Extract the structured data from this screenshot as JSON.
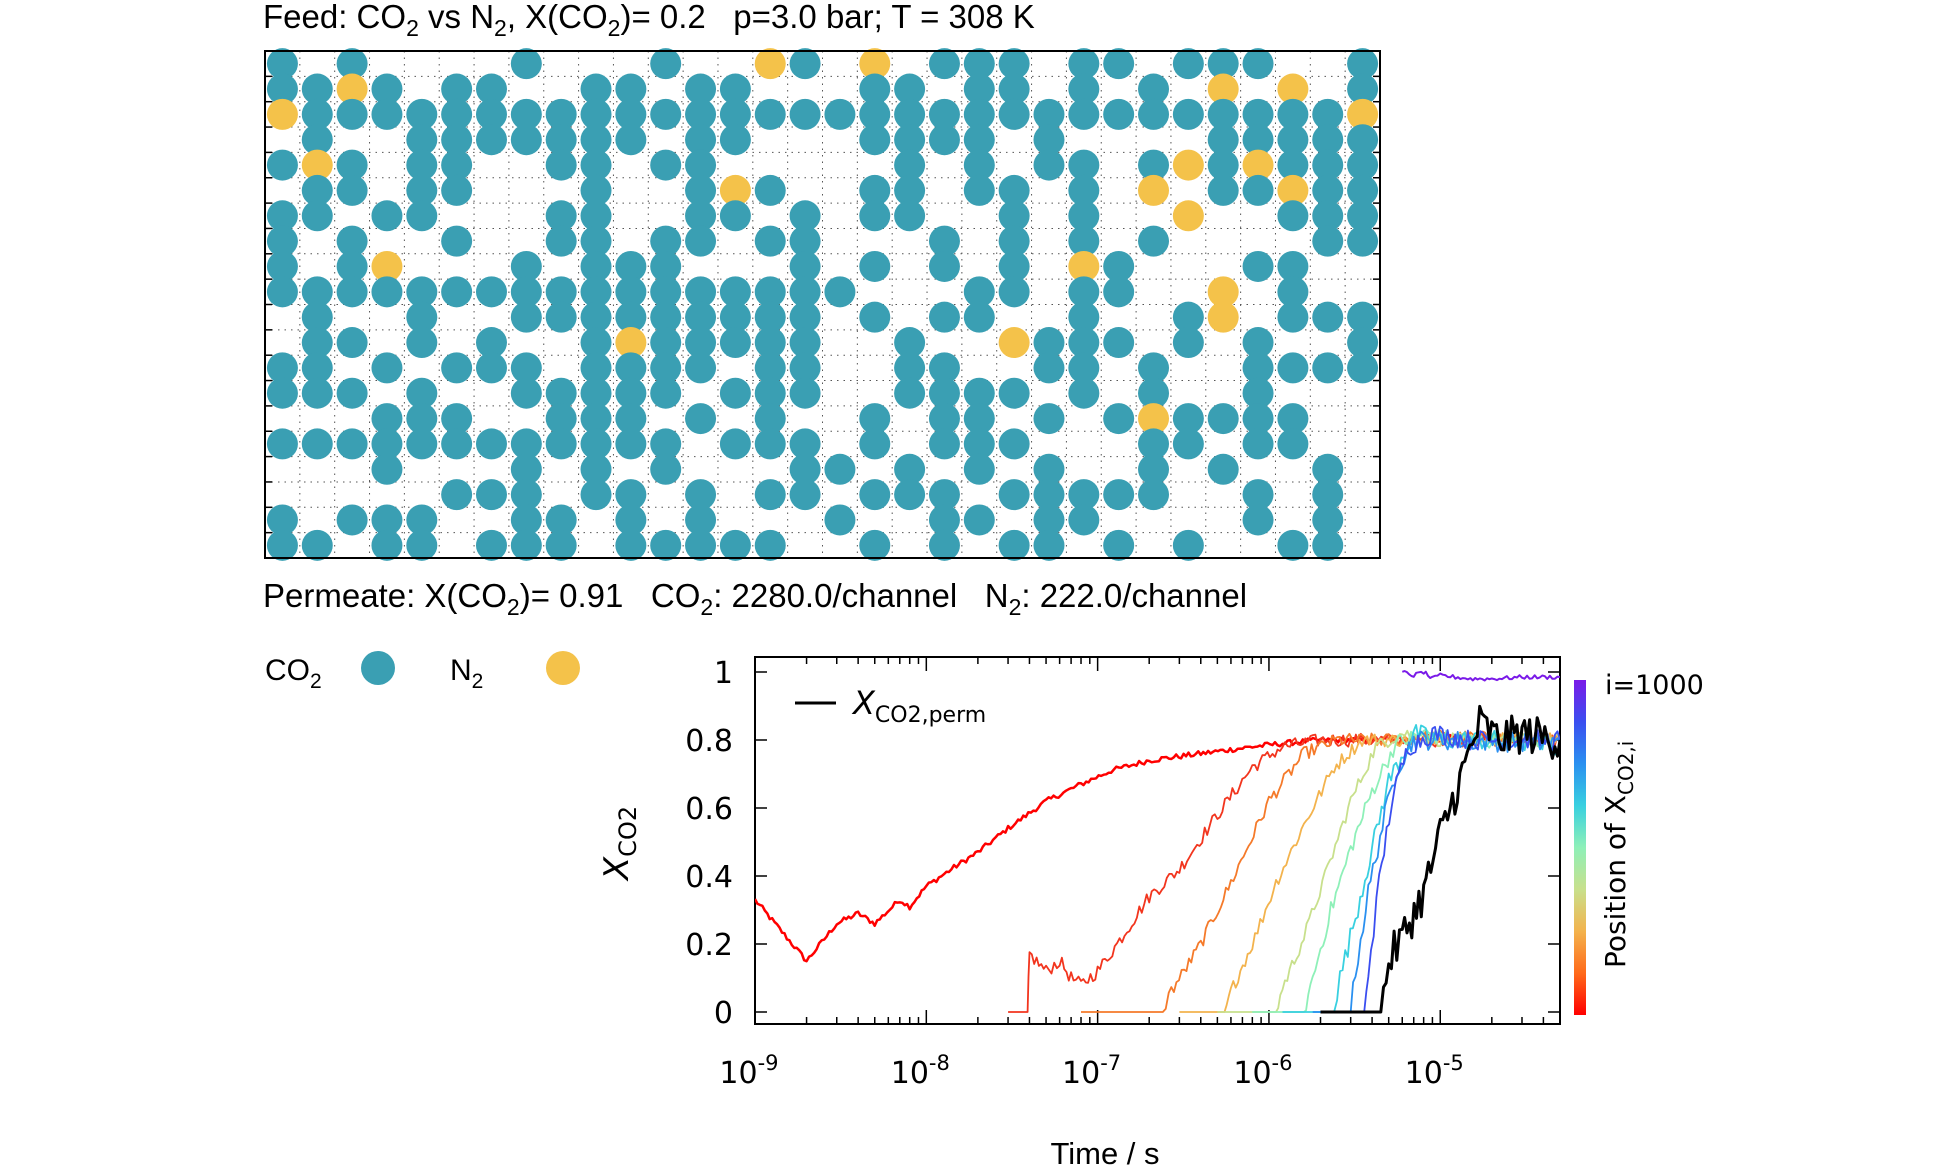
{
  "header": {
    "feed_prefix": "Feed: CO",
    "feed_sub1": "2",
    "feed_mid": " vs N",
    "feed_sub2": "2",
    "feed_mid2": ", X(CO",
    "feed_sub3": "2",
    "feed_rest": ")= 0.2   p=3.0 bar; T = 308 K"
  },
  "permeate": {
    "p1": "Permeate: X(CO",
    "s1": "2",
    "p2": ")= 0.91   CO",
    "s2": "2",
    "p3": ": 2280.0/channel   N",
    "s3": "2",
    "p4": ": 222.0/channel"
  },
  "legend": {
    "co2_text": "CO",
    "co2_sub": "2",
    "n2_text": "N",
    "n2_sub": "2"
  },
  "colors": {
    "co2": "#3a9fb3",
    "n2": "#f4c24a",
    "grid": "#555555"
  },
  "lattice": {
    "columns": 32,
    "rows": 20,
    "occupancy": [
      "C.C....C...C..NC.O.CCC.CC.CCC..C",
      "CCNC.CC..CC.CC...CC.CC.C.C.N.O.C",
      "OCCCCCCCCCCCCCCCCCCCCCCCCCCCCCCO",
      ".C..CCCCCCC.CC...CCCC.C....CCCCC",
      "CNC.CC..CC.CC.....C.C.CC.CNCNCCC",
      ".CC.CC...C..CNC..CC.CC.C.N.CCNCC",
      "CC.CC...CC..CC.C.CC..C.C..N..CCC",
      "C.C..C..CC.CC.CC...C.C.C.C....CC",
      "C.CN...C.CCC...C.C.C.C.NC...CC..",
      "CCCCCCCCCCCCCCCCC...CC.CC..N.C..",
      ".C..C..CCCCCCCCC.C.CC..C..CN.CCC",
      ".CC.C.C..CNCCCCC..C..NCCC.C.C..C",
      "CC.C.CCC.CCCC.CC..CC..CC.C..CCCC",
      "CCC.C..CCCCC.CCC..CCCC.C.C..C...",
      "...CCC..CCC.C.C..C.CC.C.CNCCCC..",
      "CCCCCCCCCCCC.CCC.C.CCC...CC.CC..",
      "...C...C.C.C...CC.C.C.C..C.C..C.",
      ".....CCC.CC.C.CC.CCC.CCCCC..C.C.",
      "C.CCC..CC.C.C...C..CC.CC....C.C.",
      "CC.CC.CCC.CCCCC..C.C.CC.C.C..CC."
    ]
  },
  "chart_data": {
    "type": "line",
    "xlabel": "Time / s",
    "ylabel_main": "X",
    "ylabel_sub": "CO2",
    "x_scale": "log",
    "xlim": [
      1e-09,
      5e-05
    ],
    "ylim": [
      0,
      1
    ],
    "x_ticks": [
      {
        "value": 1e-09,
        "base": "10",
        "exp": "-9"
      },
      {
        "value": 1e-08,
        "base": "10",
        "exp": "-8"
      },
      {
        "value": 1e-07,
        "base": "10",
        "exp": "-7"
      },
      {
        "value": 1e-06,
        "base": "10",
        "exp": "-6"
      },
      {
        "value": 1e-05,
        "base": "10",
        "exp": "-5"
      }
    ],
    "y_ticks": [
      {
        "value": 0,
        "label": "0"
      },
      {
        "value": 0.2,
        "label": "0.2"
      },
      {
        "value": 0.4,
        "label": "0.4"
      },
      {
        "value": 0.6,
        "label": "0.6"
      },
      {
        "value": 0.8,
        "label": "0.8"
      },
      {
        "value": 1,
        "label": "1"
      }
    ],
    "legend": {
      "main": "X",
      "sub": "CO2,perm",
      "position": "top-left"
    },
    "colorbar": {
      "top_label": "i=1000",
      "title_main": "Position of X",
      "title_sub": "CO2,i",
      "colors": [
        "#ff0000",
        "#ff6a1a",
        "#f3b34d",
        "#c8e08c",
        "#8ef0b8",
        "#38d0e0",
        "#2a90f0",
        "#3a4ef0",
        "#7a1ae8"
      ]
    },
    "series": [
      {
        "name": "X_CO2,perm",
        "color": "#000000",
        "width": 3,
        "noise": 0.06,
        "points": [
          [
            2e-06,
            0
          ],
          [
            4.5e-06,
            0
          ],
          [
            5e-06,
            0.15
          ],
          [
            6e-06,
            0.22
          ],
          [
            8e-06,
            0.35
          ],
          [
            1e-05,
            0.52
          ],
          [
            1.3e-05,
            0.68
          ],
          [
            1.7e-05,
            0.85
          ],
          [
            2.2e-05,
            0.8
          ],
          [
            3e-05,
            0.82
          ],
          [
            5e-05,
            0.8
          ]
        ]
      },
      {
        "color": "#ff0000",
        "width": 2.5,
        "noise": 0.008,
        "points": [
          [
            1e-09,
            0.33
          ],
          [
            2e-09,
            0.15
          ],
          [
            3e-09,
            0.26
          ],
          [
            4e-09,
            0.29
          ],
          [
            5e-09,
            0.26
          ],
          [
            7e-09,
            0.33
          ],
          [
            8e-09,
            0.31
          ],
          [
            1e-08,
            0.37
          ],
          [
            1.5e-08,
            0.43
          ],
          [
            2e-08,
            0.47
          ],
          [
            3e-08,
            0.54
          ],
          [
            5e-08,
            0.62
          ],
          [
            8e-08,
            0.67
          ],
          [
            1.2e-07,
            0.71
          ],
          [
            2e-07,
            0.74
          ],
          [
            4e-07,
            0.76
          ],
          [
            8e-07,
            0.78
          ],
          [
            1.2e-06,
            0.79
          ],
          [
            2e-06,
            0.8
          ],
          [
            5e-06,
            0.8
          ],
          [
            1e-05,
            0.81
          ],
          [
            5e-05,
            0.8
          ]
        ]
      },
      {
        "color": "#f2351e",
        "width": 1.8,
        "noise": 0.02,
        "points": [
          [
            3e-08,
            0
          ],
          [
            3.9e-08,
            0
          ],
          [
            4e-08,
            0.17
          ],
          [
            5e-08,
            0.12
          ],
          [
            6e-08,
            0.15
          ],
          [
            7e-08,
            0.1
          ],
          [
            8e-08,
            0.08
          ],
          [
            1e-07,
            0.12
          ],
          [
            1.3e-07,
            0.2
          ],
          [
            2e-07,
            0.34
          ],
          [
            3e-07,
            0.42
          ],
          [
            5e-07,
            0.58
          ],
          [
            8e-07,
            0.72
          ],
          [
            1.2e-06,
            0.78
          ],
          [
            2e-06,
            0.8
          ],
          [
            5e-06,
            0.8
          ],
          [
            1e-05,
            0.8
          ],
          [
            5e-05,
            0.8
          ]
        ]
      },
      {
        "color": "#f57a2a",
        "width": 1.8,
        "noise": 0.02,
        "points": [
          [
            8e-08,
            0
          ],
          [
            2.4e-07,
            0
          ],
          [
            2.6e-07,
            0.05
          ],
          [
            3.2e-07,
            0.12
          ],
          [
            4e-07,
            0.2
          ],
          [
            6e-07,
            0.38
          ],
          [
            1e-06,
            0.62
          ],
          [
            1.6e-06,
            0.76
          ],
          [
            2.5e-06,
            0.8
          ],
          [
            5e-06,
            0.8
          ],
          [
            1e-05,
            0.81
          ],
          [
            5e-05,
            0.8
          ]
        ]
      },
      {
        "color": "#f3b34d",
        "width": 1.8,
        "noise": 0.02,
        "points": [
          [
            3e-07,
            0
          ],
          [
            5.5e-07,
            0
          ],
          [
            6e-07,
            0.06
          ],
          [
            8e-07,
            0.2
          ],
          [
            1.1e-06,
            0.38
          ],
          [
            1.6e-06,
            0.55
          ],
          [
            2.4e-06,
            0.72
          ],
          [
            3.5e-06,
            0.8
          ],
          [
            6e-06,
            0.8
          ],
          [
            1e-05,
            0.81
          ],
          [
            5e-05,
            0.8
          ]
        ]
      },
      {
        "color": "#c8e08c",
        "width": 1.8,
        "noise": 0.02,
        "points": [
          [
            5e-07,
            0
          ],
          [
            1.1e-06,
            0
          ],
          [
            1.2e-06,
            0.07
          ],
          [
            1.6e-06,
            0.22
          ],
          [
            2.2e-06,
            0.42
          ],
          [
            3e-06,
            0.62
          ],
          [
            4.2e-06,
            0.78
          ],
          [
            6e-06,
            0.82
          ],
          [
            1e-05,
            0.8
          ],
          [
            5e-05,
            0.8
          ]
        ]
      },
      {
        "color": "#8ef0b8",
        "width": 1.8,
        "noise": 0.025,
        "points": [
          [
            8e-07,
            0
          ],
          [
            1.6e-06,
            0
          ],
          [
            1.8e-06,
            0.1
          ],
          [
            2.3e-06,
            0.3
          ],
          [
            3e-06,
            0.48
          ],
          [
            4e-06,
            0.65
          ],
          [
            5.5e-06,
            0.79
          ],
          [
            8e-06,
            0.82
          ],
          [
            1.2e-05,
            0.8
          ],
          [
            5e-05,
            0.79
          ]
        ]
      },
      {
        "color": "#38d0e0",
        "width": 1.8,
        "noise": 0.03,
        "points": [
          [
            1.2e-06,
            0
          ],
          [
            2.4e-06,
            0
          ],
          [
            2.6e-06,
            0.1
          ],
          [
            3.2e-06,
            0.28
          ],
          [
            4e-06,
            0.48
          ],
          [
            5e-06,
            0.68
          ],
          [
            7e-06,
            0.82
          ],
          [
            1e-05,
            0.8
          ],
          [
            2e-05,
            0.8
          ],
          [
            5e-05,
            0.78
          ]
        ]
      },
      {
        "color": "#2a90f0",
        "width": 1.8,
        "noise": 0.03,
        "points": [
          [
            1.8e-06,
            0
          ],
          [
            3e-06,
            0
          ],
          [
            3.2e-06,
            0.12
          ],
          [
            3.8e-06,
            0.35
          ],
          [
            4.6e-06,
            0.55
          ],
          [
            5.6e-06,
            0.72
          ],
          [
            7e-06,
            0.8
          ],
          [
            1e-05,
            0.8
          ],
          [
            5e-05,
            0.79
          ]
        ]
      },
      {
        "color": "#3a4ef0",
        "width": 1.8,
        "noise": 0.03,
        "points": [
          [
            2e-06,
            0
          ],
          [
            3.6e-06,
            0
          ],
          [
            3.8e-06,
            0.12
          ],
          [
            4.4e-06,
            0.38
          ],
          [
            5.2e-06,
            0.62
          ],
          [
            6.5e-06,
            0.78
          ],
          [
            9e-06,
            0.82
          ],
          [
            1.5e-05,
            0.8
          ],
          [
            5e-05,
            0.8
          ]
        ]
      },
      {
        "color": "#7a1ae8",
        "width": 2,
        "noise": 0.006,
        "points": [
          [
            6e-06,
            1
          ],
          [
            7e-06,
            0.99
          ],
          [
            8e-06,
            1
          ],
          [
            9e-06,
            0.98
          ],
          [
            1e-05,
            0.99
          ],
          [
            1.5e-05,
            0.98
          ],
          [
            2e-05,
            0.98
          ],
          [
            3e-05,
            0.985
          ],
          [
            5e-05,
            0.985
          ]
        ]
      }
    ]
  }
}
